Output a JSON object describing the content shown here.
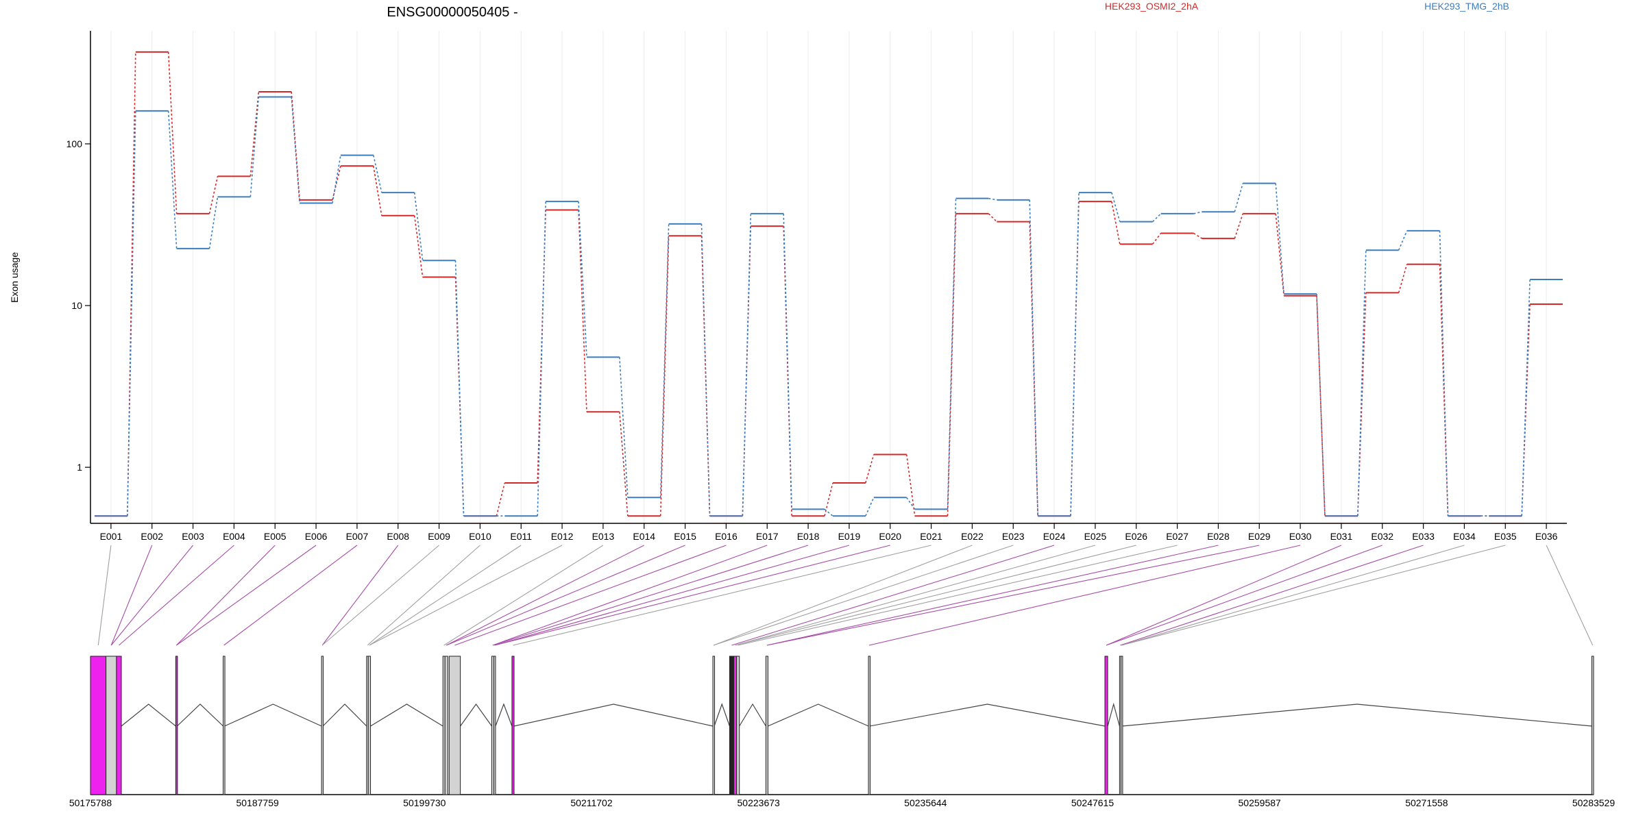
{
  "colors": {
    "series_a": "#d62728",
    "series_b": "#3b7dbf",
    "exon_highlight": "#ee22ee",
    "exon_grey": "#d3d3d3",
    "connector_grey": "#a0a0a0",
    "connector_purple": "#a64ca6"
  },
  "chart_data": {
    "type": "line",
    "title": "ENSG00000050405 -",
    "ylabel": "Exon usage",
    "xlabel": "",
    "y_scale": "log",
    "ylim": [
      0.45,
      500
    ],
    "y_ticks": [
      1,
      10,
      100
    ],
    "grid": "vertical",
    "legend": "top-right",
    "categories": [
      "E001",
      "E002",
      "E003",
      "E004",
      "E005",
      "E006",
      "E007",
      "E008",
      "E009",
      "E010",
      "E011",
      "E012",
      "E013",
      "E014",
      "E015",
      "E016",
      "E017",
      "E018",
      "E019",
      "E020",
      "E021",
      "E022",
      "E023",
      "E024",
      "E025",
      "E026",
      "E027",
      "E028",
      "E029",
      "E030",
      "E031",
      "E032",
      "E033",
      "E034",
      "E035",
      "E036"
    ],
    "series": [
      {
        "name": "HEK293_OSMI2_2hA",
        "color": "#d62728",
        "values": [
          0.5,
          370,
          37,
          63,
          210,
          45,
          73,
          36,
          15,
          0.5,
          0.8,
          39,
          2.2,
          0.5,
          27,
          0.5,
          31,
          0.5,
          0.8,
          1.2,
          0.5,
          37,
          33,
          0.5,
          44,
          24,
          28,
          26,
          37,
          11.5,
          0.5,
          12,
          18,
          0.5,
          0.5,
          10.2
        ]
      },
      {
        "name": "HEK293_TMG_2hB",
        "color": "#3b7dbf",
        "values": [
          0.5,
          160,
          22.5,
          47,
          195,
          43,
          85,
          50,
          19,
          0.5,
          0.5,
          44,
          4.8,
          0.65,
          32,
          0.5,
          37,
          0.55,
          0.5,
          0.65,
          0.55,
          46,
          45,
          0.5,
          50,
          33,
          37,
          38,
          57,
          11.8,
          0.5,
          22,
          29,
          0.5,
          0.5,
          14.5
        ]
      }
    ],
    "genome_axis": {
      "ticks": [
        "50175788",
        "50187759",
        "50199730",
        "50211702",
        "50223673",
        "50235644",
        "50247615",
        "50259587",
        "50271558",
        "50283529"
      ]
    }
  },
  "gene_model": {
    "exons": [
      {
        "start": 50175788,
        "end": 50176900,
        "fill": "#ee22ee"
      },
      {
        "start": 50176900,
        "end": 50177650,
        "fill": "#d3d3d3"
      },
      {
        "start": 50177650,
        "end": 50178000,
        "fill": "#ee22ee"
      },
      {
        "start": 50181900,
        "end": 50182000,
        "fill": "#ee22ee"
      },
      {
        "start": 50185300,
        "end": 50185400,
        "fill": "#d3d3d3"
      },
      {
        "start": 50192350,
        "end": 50192450,
        "fill": "#d3d3d3"
      },
      {
        "start": 50195580,
        "end": 50195700,
        "fill": "#d3d3d3"
      },
      {
        "start": 50195700,
        "end": 50195860,
        "fill": "#d3d3d3"
      },
      {
        "start": 50201050,
        "end": 50201200,
        "fill": "#d3d3d3"
      },
      {
        "start": 50201200,
        "end": 50201400,
        "fill": "#d3d3d3"
      },
      {
        "start": 50201500,
        "end": 50202300,
        "fill": "#d3d3d3"
      },
      {
        "start": 50204550,
        "end": 50204700,
        "fill": "#d3d3d3"
      },
      {
        "start": 50204700,
        "end": 50204820,
        "fill": "#d3d3d3"
      },
      {
        "start": 50206000,
        "end": 50206150,
        "fill": "#ee22ee"
      },
      {
        "start": 50220400,
        "end": 50220500,
        "fill": "#d3d3d3"
      },
      {
        "start": 50221600,
        "end": 50221900,
        "fill": "#222222"
      },
      {
        "start": 50221900,
        "end": 50222100,
        "fill": "#ee22ee"
      },
      {
        "start": 50222100,
        "end": 50222300,
        "fill": "#d3d3d3"
      },
      {
        "start": 50224200,
        "end": 50224350,
        "fill": "#d3d3d3"
      },
      {
        "start": 50231550,
        "end": 50231650,
        "fill": "#d3d3d3"
      },
      {
        "start": 50248500,
        "end": 50248700,
        "fill": "#ee22ee"
      },
      {
        "start": 50249550,
        "end": 50249650,
        "fill": "#d3d3d3"
      },
      {
        "start": 50249650,
        "end": 50249750,
        "fill": "#d3d3d3"
      },
      {
        "start": 50283400,
        "end": 50283529,
        "fill": "#d3d3d3"
      }
    ]
  }
}
